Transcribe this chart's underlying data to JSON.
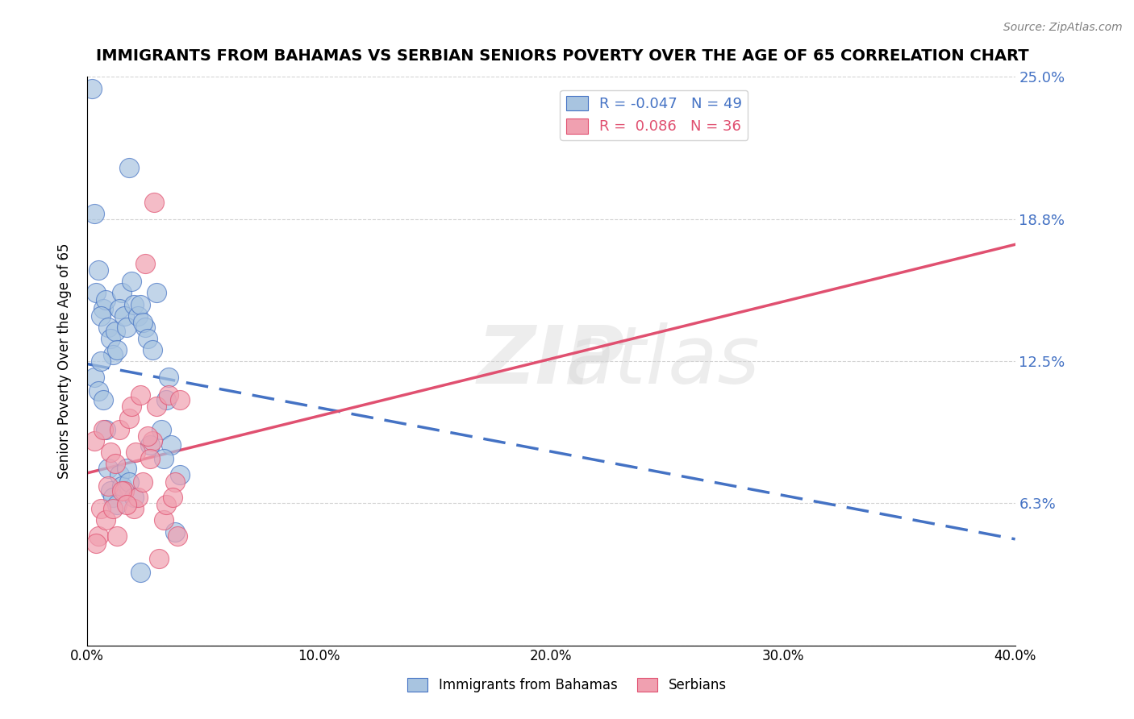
{
  "title": "IMMIGRANTS FROM BAHAMAS VS SERBIAN SENIORS POVERTY OVER THE AGE OF 65 CORRELATION CHART",
  "source": "Source: ZipAtlas.com",
  "xlabel": "",
  "ylabel": "Seniors Poverty Over the Age of 65",
  "xlim": [
    0.0,
    0.4
  ],
  "ylim": [
    0.0,
    0.25
  ],
  "yticks": [
    0.0,
    0.0625,
    0.125,
    0.1875,
    0.25
  ],
  "ytick_labels": [
    "",
    "6.3%",
    "12.5%",
    "18.8%",
    "25.0%"
  ],
  "xticks": [
    0.0,
    0.1,
    0.2,
    0.3,
    0.4
  ],
  "xtick_labels": [
    "0.0%",
    "10.0%",
    "20.0%",
    "30.0%",
    "40.0%"
  ],
  "blue_R": -0.047,
  "blue_N": 49,
  "pink_R": 0.086,
  "pink_N": 36,
  "blue_color": "#a8c4e0",
  "pink_color": "#f0a0b0",
  "blue_line_color": "#4472c4",
  "pink_line_color": "#e05070",
  "watermark": "ZIPatlas",
  "blue_scatter_x": [
    0.002,
    0.005,
    0.018,
    0.003,
    0.004,
    0.007,
    0.008,
    0.006,
    0.009,
    0.01,
    0.012,
    0.011,
    0.013,
    0.015,
    0.014,
    0.016,
    0.017,
    0.019,
    0.02,
    0.022,
    0.025,
    0.023,
    0.024,
    0.026,
    0.028,
    0.03,
    0.032,
    0.034,
    0.035,
    0.036,
    0.038,
    0.04,
    0.003,
    0.005,
    0.006,
    0.007,
    0.008,
    0.009,
    0.01,
    0.011,
    0.013,
    0.014,
    0.015,
    0.017,
    0.018,
    0.02,
    0.023,
    0.027,
    0.033
  ],
  "blue_scatter_y": [
    0.245,
    0.165,
    0.21,
    0.19,
    0.155,
    0.148,
    0.152,
    0.145,
    0.14,
    0.135,
    0.138,
    0.128,
    0.13,
    0.155,
    0.148,
    0.145,
    0.14,
    0.16,
    0.15,
    0.145,
    0.14,
    0.15,
    0.142,
    0.135,
    0.13,
    0.155,
    0.095,
    0.108,
    0.118,
    0.088,
    0.05,
    0.075,
    0.118,
    0.112,
    0.125,
    0.108,
    0.095,
    0.078,
    0.068,
    0.065,
    0.062,
    0.075,
    0.07,
    0.078,
    0.072,
    0.065,
    0.032,
    0.088,
    0.082
  ],
  "pink_scatter_x": [
    0.003,
    0.005,
    0.007,
    0.009,
    0.01,
    0.012,
    0.014,
    0.016,
    0.018,
    0.02,
    0.022,
    0.025,
    0.028,
    0.03,
    0.033,
    0.035,
    0.038,
    0.04,
    0.006,
    0.008,
    0.011,
    0.013,
    0.015,
    0.017,
    0.019,
    0.021,
    0.024,
    0.027,
    0.031,
    0.034,
    0.037,
    0.039,
    0.004,
    0.023,
    0.026,
    0.029
  ],
  "pink_scatter_y": [
    0.09,
    0.048,
    0.095,
    0.07,
    0.085,
    0.08,
    0.095,
    0.068,
    0.1,
    0.06,
    0.065,
    0.168,
    0.09,
    0.105,
    0.055,
    0.11,
    0.072,
    0.108,
    0.06,
    0.055,
    0.06,
    0.048,
    0.068,
    0.062,
    0.105,
    0.085,
    0.072,
    0.082,
    0.038,
    0.062,
    0.065,
    0.048,
    0.045,
    0.11,
    0.092,
    0.195
  ]
}
